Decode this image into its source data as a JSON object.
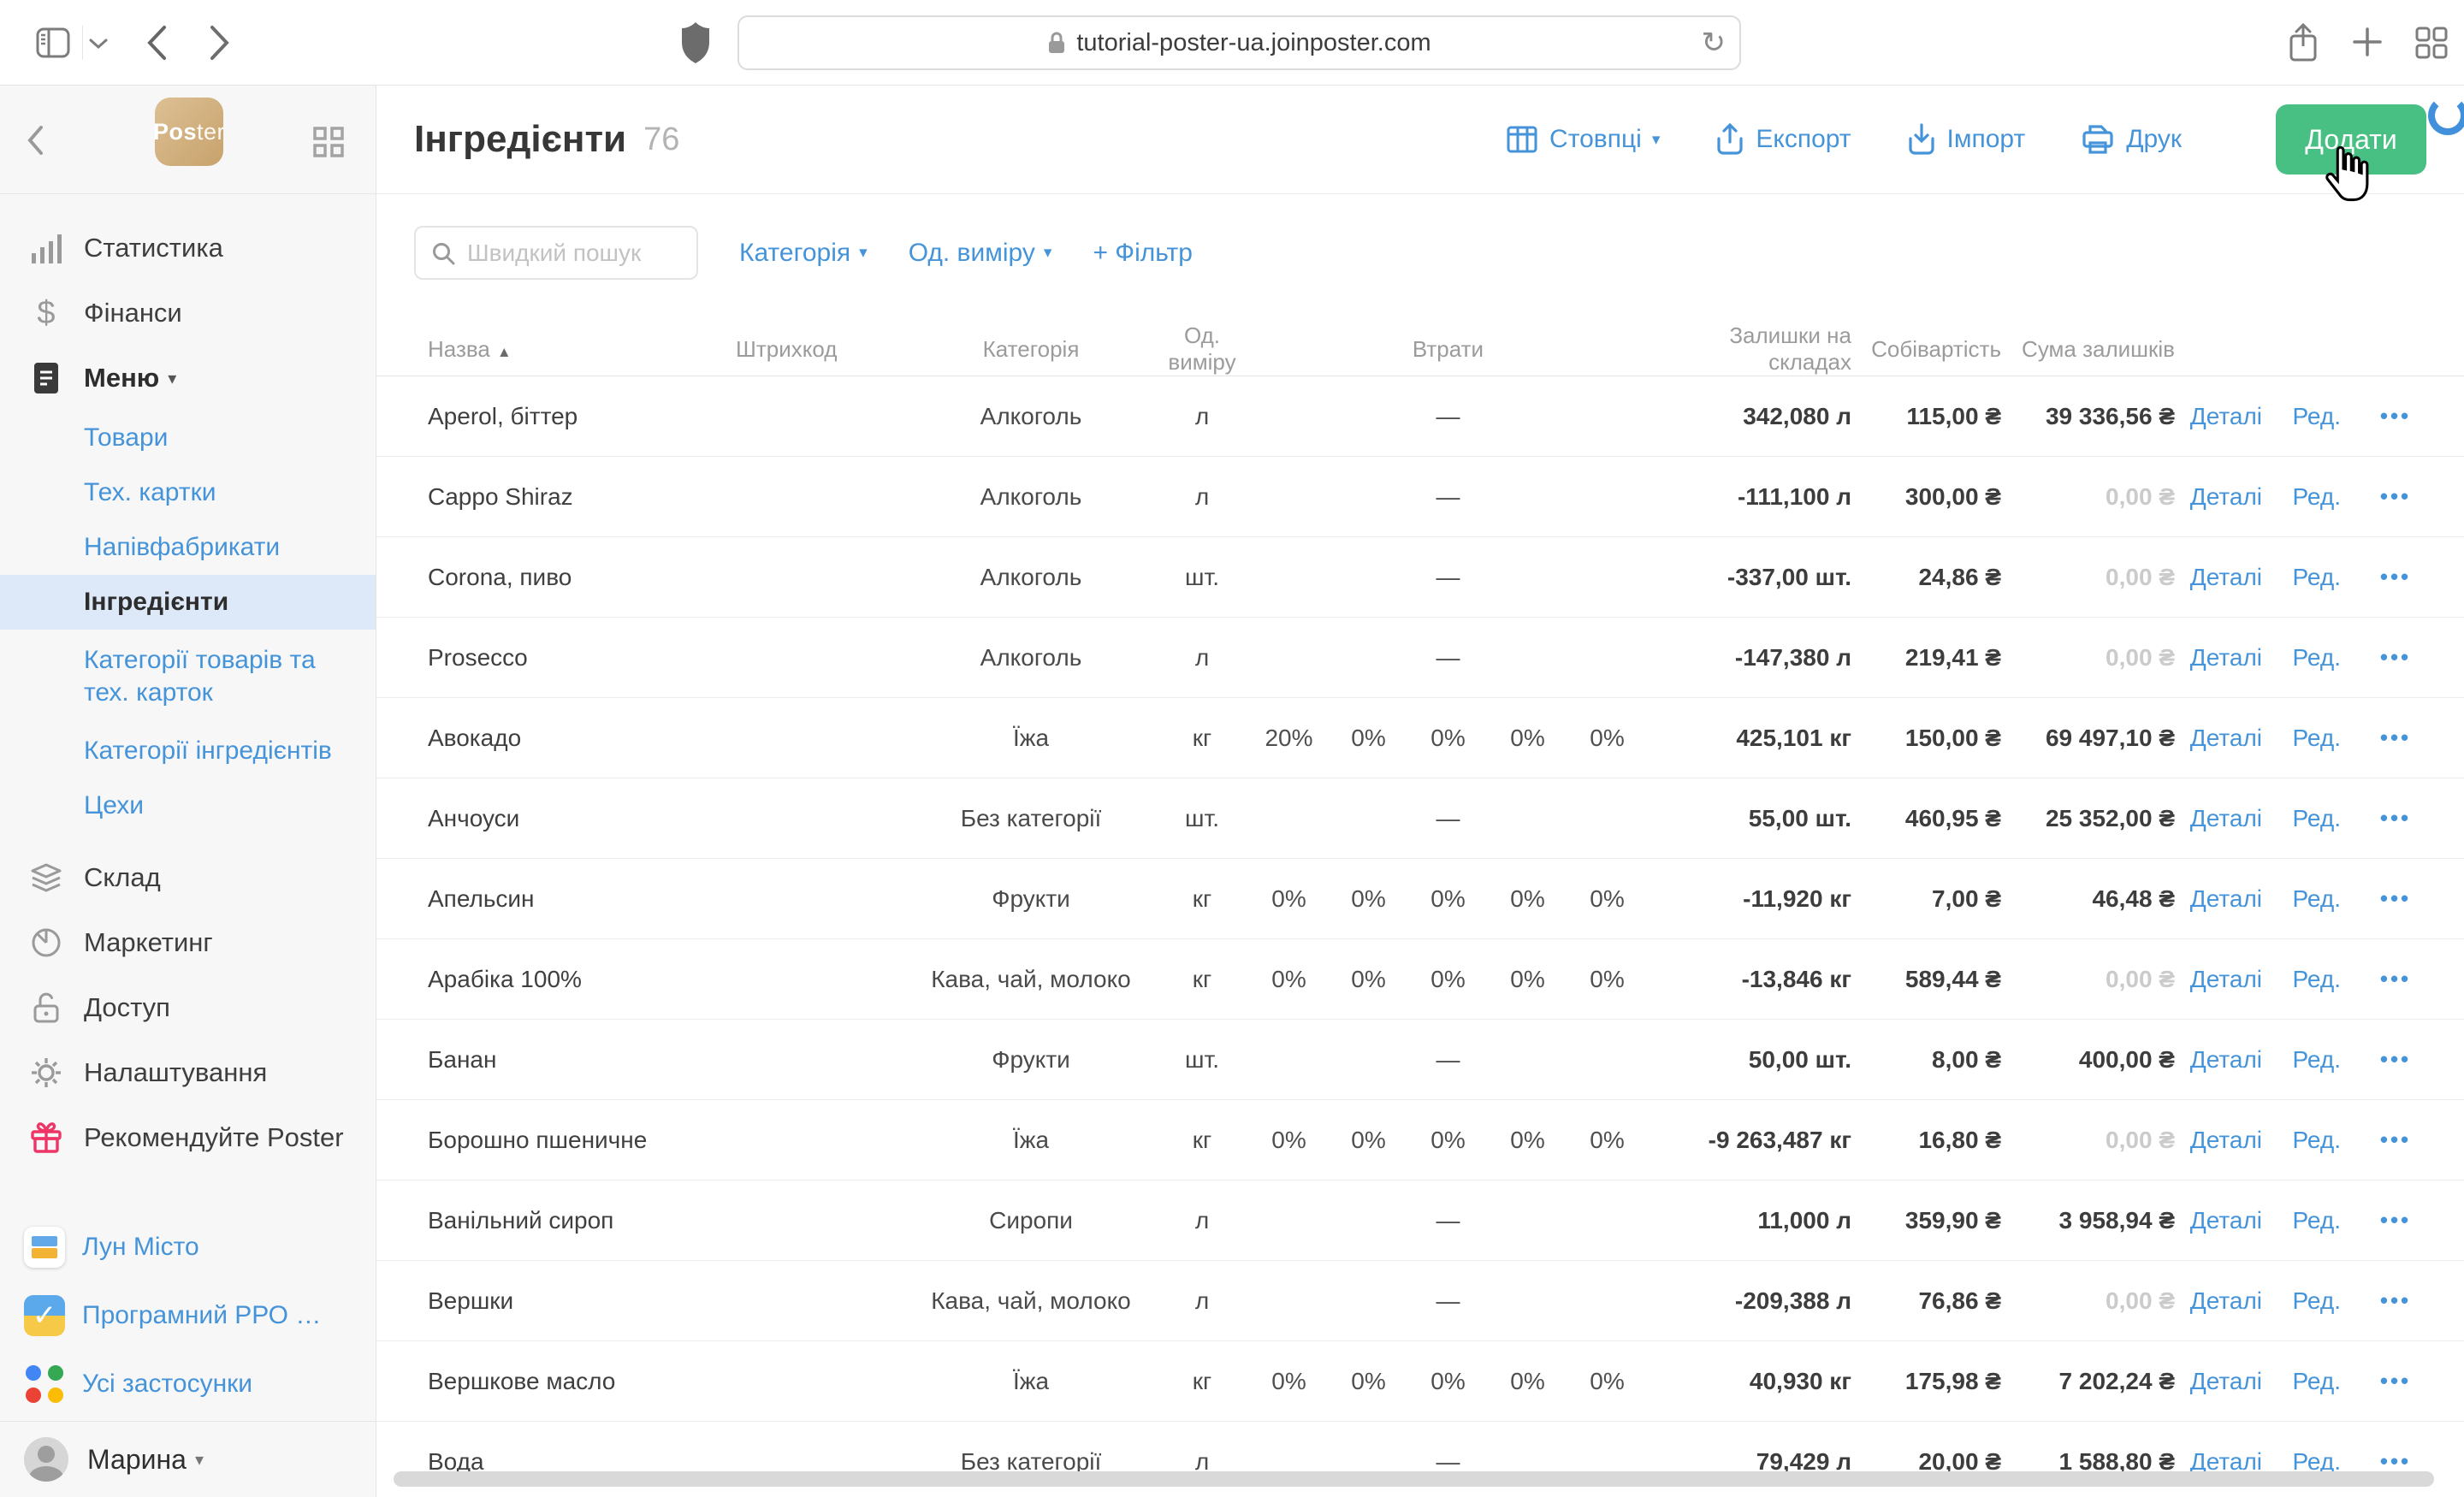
{
  "browser": {
    "url": "tutorial-poster-ua.joinposter.com"
  },
  "icons": {
    "caret_down": "▾",
    "sort_asc": "▲",
    "dollar": "$",
    "reload": "↻",
    "check": "✓"
  },
  "sidebar": {
    "logo": {
      "bold": "Pos",
      "light": "ter"
    },
    "items": {
      "statistics": "Статистика",
      "finance": "Фінанси",
      "menu": "Меню",
      "warehouse": "Склад",
      "marketing": "Маркетинг",
      "access": "Доступ",
      "settings": "Налаштування",
      "recommend": "Рекомендуйте Poster"
    },
    "submenu": [
      "Товари",
      "Тех. картки",
      "Напівфабрикати",
      "Інгредієнти",
      "Категорії товарів та тех. карток",
      "Категорії інгредієнтів",
      "Цехи"
    ],
    "apps": [
      "Лун Місто",
      "Програмний РРО …",
      "Усі застосунки"
    ],
    "account": "Марина"
  },
  "header": {
    "title": "Інгредієнти",
    "count": "76",
    "actions": {
      "columns": "Стовпці",
      "export": "Експорт",
      "import": "Імпорт",
      "print": "Друк",
      "add": "Додати"
    }
  },
  "filters": {
    "search_placeholder": "Швидкий пошук",
    "category": "Категорія",
    "unit": "Од. виміру",
    "add_filter": "+ Фільтр"
  },
  "table": {
    "columns": {
      "name": "Назва",
      "barcode": "Штрихкод",
      "category": "Категорія",
      "unit": "Од. виміру",
      "losses": "Втрати",
      "stock": "Залишки на складах",
      "cost": "Собівартість",
      "sum": "Сума залишків"
    },
    "actions": {
      "details": "Деталі",
      "edit": "Ред.",
      "more": "•••"
    },
    "empty_losses": "—",
    "rows": [
      {
        "name": "Aperol, біттер",
        "category": "Алкоголь",
        "unit": "л",
        "losses": null,
        "stock": "342,080 л",
        "cost": "115,00 ₴",
        "sum": "39 336,56 ₴",
        "sum_muted": false
      },
      {
        "name": "Cappo Shiraz",
        "category": "Алкоголь",
        "unit": "л",
        "losses": null,
        "stock": "-111,100 л",
        "cost": "300,00 ₴",
        "sum": "0,00 ₴",
        "sum_muted": true
      },
      {
        "name": "Corona, пиво",
        "category": "Алкоголь",
        "unit": "шт.",
        "losses": null,
        "stock": "-337,00 шт.",
        "cost": "24,86 ₴",
        "sum": "0,00 ₴",
        "sum_muted": true
      },
      {
        "name": "Prosecco",
        "category": "Алкоголь",
        "unit": "л",
        "losses": null,
        "stock": "-147,380 л",
        "cost": "219,41 ₴",
        "sum": "0,00 ₴",
        "sum_muted": true
      },
      {
        "name": "Авокадо",
        "category": "Їжа",
        "unit": "кг",
        "losses": [
          "20%",
          "0%",
          "0%",
          "0%",
          "0%"
        ],
        "stock": "425,101 кг",
        "cost": "150,00 ₴",
        "sum": "69 497,10 ₴",
        "sum_muted": false
      },
      {
        "name": "Анчоуси",
        "category": "Без категорії",
        "unit": "шт.",
        "losses": null,
        "stock": "55,00 шт.",
        "cost": "460,95 ₴",
        "sum": "25 352,00 ₴",
        "sum_muted": false
      },
      {
        "name": "Апельсин",
        "category": "Фрукти",
        "unit": "кг",
        "losses": [
          "0%",
          "0%",
          "0%",
          "0%",
          "0%"
        ],
        "stock": "-11,920 кг",
        "cost": "7,00 ₴",
        "sum": "46,48 ₴",
        "sum_muted": false
      },
      {
        "name": "Арабіка 100%",
        "category": "Кава, чай, молоко",
        "unit": "кг",
        "losses": [
          "0%",
          "0%",
          "0%",
          "0%",
          "0%"
        ],
        "stock": "-13,846 кг",
        "cost": "589,44 ₴",
        "sum": "0,00 ₴",
        "sum_muted": true
      },
      {
        "name": "Банан",
        "category": "Фрукти",
        "unit": "шт.",
        "losses": null,
        "stock": "50,00 шт.",
        "cost": "8,00 ₴",
        "sum": "400,00 ₴",
        "sum_muted": false
      },
      {
        "name": "Борошно пшеничне",
        "category": "Їжа",
        "unit": "кг",
        "losses": [
          "0%",
          "0%",
          "0%",
          "0%",
          "0%"
        ],
        "stock": "-9 263,487 кг",
        "cost": "16,80 ₴",
        "sum": "0,00 ₴",
        "sum_muted": true
      },
      {
        "name": "Ванільний сироп",
        "category": "Сиропи",
        "unit": "л",
        "losses": null,
        "stock": "11,000 л",
        "cost": "359,90 ₴",
        "sum": "3 958,94 ₴",
        "sum_muted": false
      },
      {
        "name": "Вершки",
        "category": "Кава, чай, молоко",
        "unit": "л",
        "losses": null,
        "stock": "-209,388 л",
        "cost": "76,86 ₴",
        "sum": "0,00 ₴",
        "sum_muted": true
      },
      {
        "name": "Вершкове масло",
        "category": "Їжа",
        "unit": "кг",
        "losses": [
          "0%",
          "0%",
          "0%",
          "0%",
          "0%"
        ],
        "stock": "40,930 кг",
        "cost": "175,98 ₴",
        "sum": "7 202,24 ₴",
        "sum_muted": false
      },
      {
        "name": "Вода",
        "category": "Без категорії",
        "unit": "л",
        "losses": null,
        "stock": "79,429 л",
        "cost": "20,00 ₴",
        "sum": "1 588,80 ₴",
        "sum_muted": false
      }
    ]
  }
}
